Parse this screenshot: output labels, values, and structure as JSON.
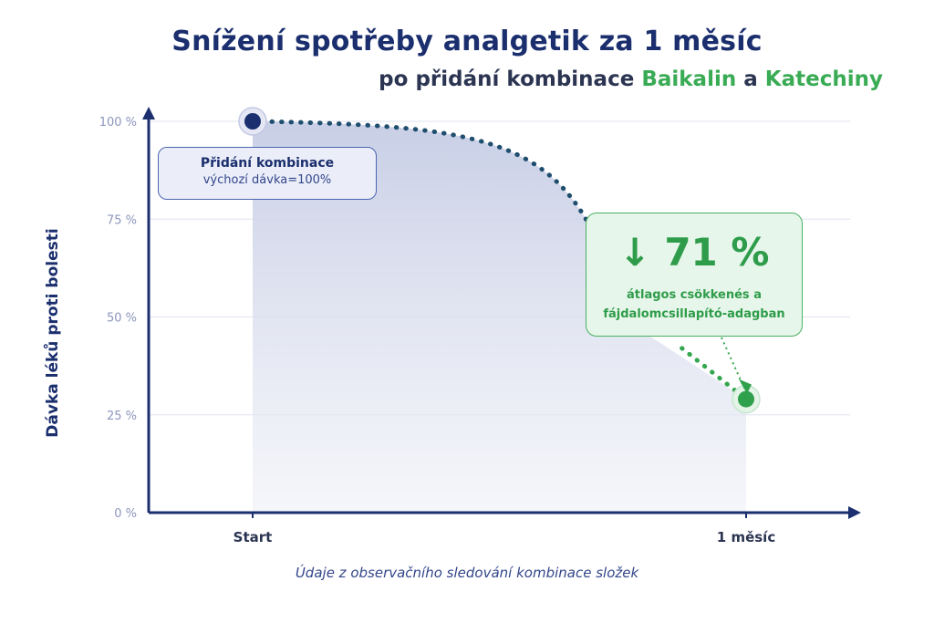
{
  "header": {
    "title": "Snížení spotřeby analgetik za 1 měsíc",
    "subtitle_prefix": "po přidání kombinace",
    "subtitle_item1": "Baikalin",
    "subtitle_joiner": "a",
    "subtitle_item2": "Katechiny"
  },
  "callouts": {
    "start_title": "Přidání kombinace",
    "start_text": "výchozí dávka=100%",
    "result_value": "↓ 71 %",
    "result_line1": "átlagos csökkenés a",
    "result_line2": "fájdalomcsillapító-adagban"
  },
  "caption": "Údaje z observačního sledování kombinace složek",
  "colors": {
    "navy": "#1b2f6e",
    "green": "#3aab55",
    "area": "#c9cfe6",
    "grid": "#dde1ee"
  },
  "chart_data": {
    "type": "area",
    "title": "Snížení spotřeby analgetik za 1 měsíc",
    "ylabel": "Dávka léků proti bolesti",
    "xlabel": "",
    "ylim": [
      0,
      100
    ],
    "yticks": [
      0,
      25,
      50,
      75,
      100
    ],
    "ytick_labels": [
      "0 %",
      "25 %",
      "50 %",
      "75 %",
      "100 %"
    ],
    "x": [
      0,
      1
    ],
    "xtick_labels": [
      "Start",
      "1 měsíc"
    ],
    "series": [
      {
        "values": [
          100,
          29
        ]
      }
    ],
    "grid": true
  }
}
